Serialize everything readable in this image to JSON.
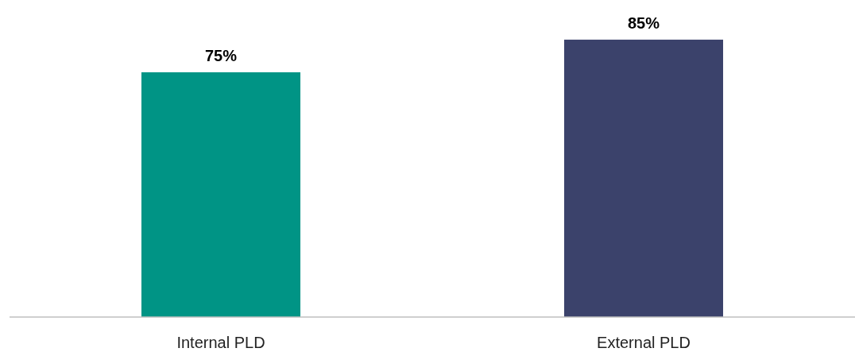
{
  "chart_data": {
    "type": "bar",
    "categories": [
      "Internal PLD",
      "External PLD"
    ],
    "values": [
      75,
      85
    ],
    "colors": [
      "#009485",
      "#3b426b"
    ],
    "value_labels": [
      "75%",
      "85%"
    ],
    "tick_labels": "x"
  }
}
